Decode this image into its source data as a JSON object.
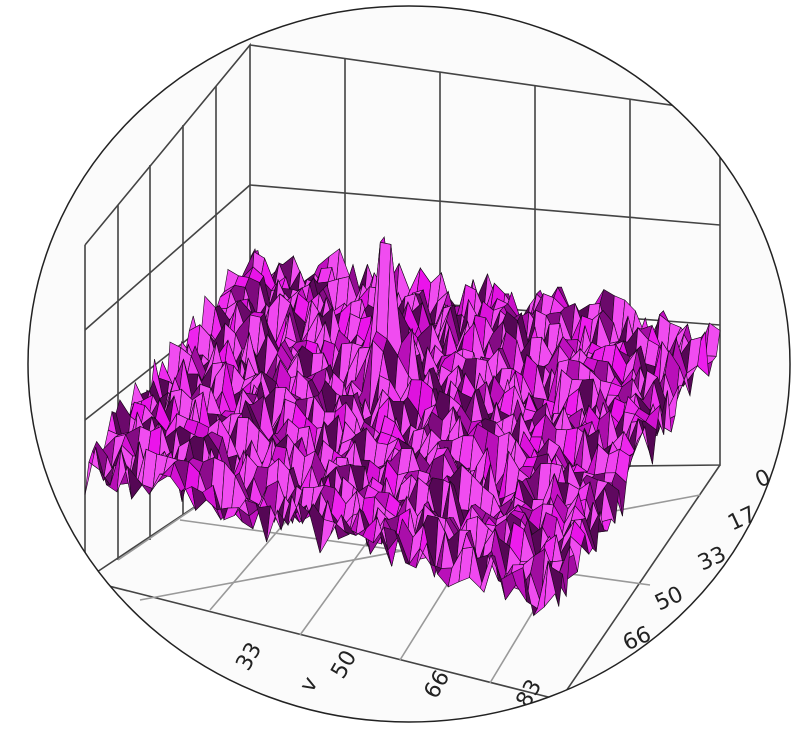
{
  "axes": {
    "front": {
      "label": "v",
      "ticks": [
        "33",
        "50",
        "66",
        "83"
      ]
    },
    "right": {
      "ticks": [
        "0",
        "17",
        "33",
        "50",
        "66"
      ]
    }
  }
}
